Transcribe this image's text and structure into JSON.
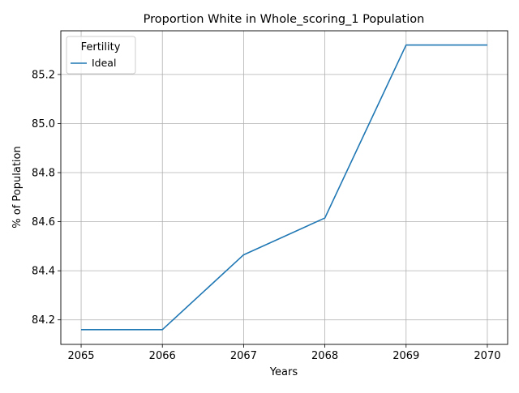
{
  "chart_data": {
    "type": "line",
    "title": "Proportion White in Whole_scoring_1 Population",
    "xlabel": "Years",
    "ylabel": "% of Population",
    "x": [
      2065,
      2066,
      2067,
      2068,
      2069,
      2070
    ],
    "x_tick_labels": [
      "2065",
      "2066",
      "2067",
      "2068",
      "2069",
      "2070"
    ],
    "y_ticks": [
      84.2,
      84.4,
      84.6,
      84.8,
      85.0,
      85.2
    ],
    "y_tick_labels": [
      "84.2",
      "84.4",
      "84.6",
      "84.8",
      "85.0",
      "85.2"
    ],
    "xlim": [
      2064.75,
      2070.25
    ],
    "ylim": [
      84.1,
      85.378
    ],
    "grid": true,
    "legend": {
      "title": "Fertility",
      "placement": "top-left"
    },
    "series": [
      {
        "name": "Ideal",
        "color": "#1f77b4",
        "values": [
          84.16,
          84.16,
          84.465,
          84.615,
          85.32,
          85.32
        ]
      }
    ]
  }
}
